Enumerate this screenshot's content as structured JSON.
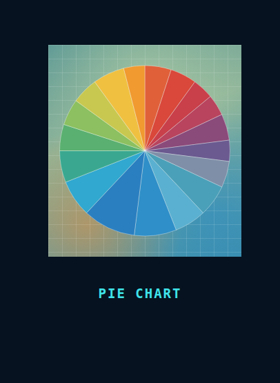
{
  "chart_data": {
    "type": "pie",
    "title": "PIE CHART",
    "values": [
      5,
      5,
      4,
      4,
      5,
      4,
      5,
      6,
      6,
      8,
      10,
      7,
      6,
      5,
      5,
      5,
      6,
      4
    ],
    "colors": [
      "#e0603a",
      "#d9483a",
      "#c93f4a",
      "#b8445e",
      "#8a4a7a",
      "#6a5a90",
      "#7f8fa8",
      "#4aa0b8",
      "#5ab0d0",
      "#2f8fc8",
      "#2a7fc0",
      "#30a8d0",
      "#3aa890",
      "#5ab070",
      "#8cc060",
      "#c8c850",
      "#f0c040",
      "#f09a30"
    ],
    "data_labels": false
  }
}
